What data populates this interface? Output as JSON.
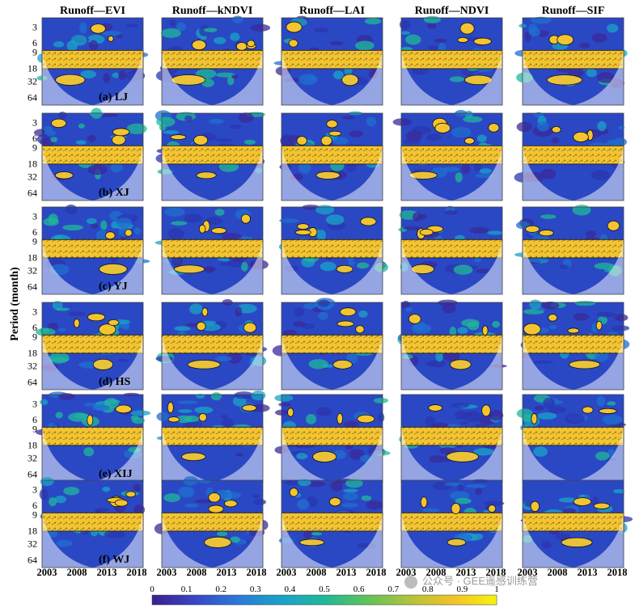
{
  "chart_data": {
    "type": "heatmap",
    "description_kind": "wavelet coherence grid",
    "columns": [
      "Runoff—EVI",
      "Runoff—kNDVI",
      "Runoff—LAI",
      "Runoff—NDVI",
      "Runoff—SIF"
    ],
    "rows": [
      "(a) LJ",
      "(b) XJ",
      "(c) YJ",
      "(d) HS",
      "(e) XIJ",
      "(f) WJ"
    ],
    "ylabel": "Period (month)",
    "yticks": [
      "3",
      "6",
      "9",
      "18",
      "32",
      "64"
    ],
    "xticks": [
      "2003",
      "2008",
      "2013",
      "2018"
    ],
    "colorbar": {
      "ticks": [
        "0",
        "0.1",
        "0.2",
        "0.3",
        "0.4",
        "0.5",
        "0.6",
        "0.7",
        "0.8",
        "0.9",
        "1"
      ],
      "range": [
        0,
        1
      ],
      "colormap": [
        "#3b1f8c",
        "#3848c8",
        "#2a7ad8",
        "#1aa3c8",
        "#20b89a",
        "#5ec25a",
        "#b2c43a",
        "#f2c228",
        "#f9f20f"
      ]
    },
    "strong_band_period_months": [
      9,
      18
    ],
    "strong_band_coherence": 0.9
  },
  "watermark": "公众号 · GEE遥感训练营"
}
